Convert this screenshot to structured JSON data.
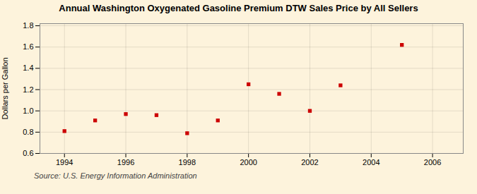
{
  "chart_data": {
    "type": "scatter",
    "title": "Annual Washington Oxygenated Gasoline Premium DTW Sales Price by All Sellers",
    "ylabel": "Dollars per Gallon",
    "source": "Source: U.S. Energy Information Administration",
    "x": [
      1994,
      1995,
      1996,
      1997,
      1998,
      1999,
      2000,
      2001,
      2002,
      2003,
      2005
    ],
    "values": [
      0.81,
      0.91,
      0.97,
      0.96,
      0.79,
      0.91,
      1.25,
      1.16,
      1.0,
      1.24,
      1.62
    ],
    "color": "#cc0000",
    "marker": "square",
    "xlim": [
      1993.2,
      2007
    ],
    "ylim": [
      0.6,
      1.82
    ],
    "xticks": [
      1994,
      1996,
      1998,
      2000,
      2002,
      2004,
      2006
    ],
    "yticks": [
      0.6,
      0.8,
      {
        "value": 1.0,
        "label": "1.0"
      },
      1.2,
      1.4,
      1.6,
      1.8
    ],
    "grid": true
  }
}
